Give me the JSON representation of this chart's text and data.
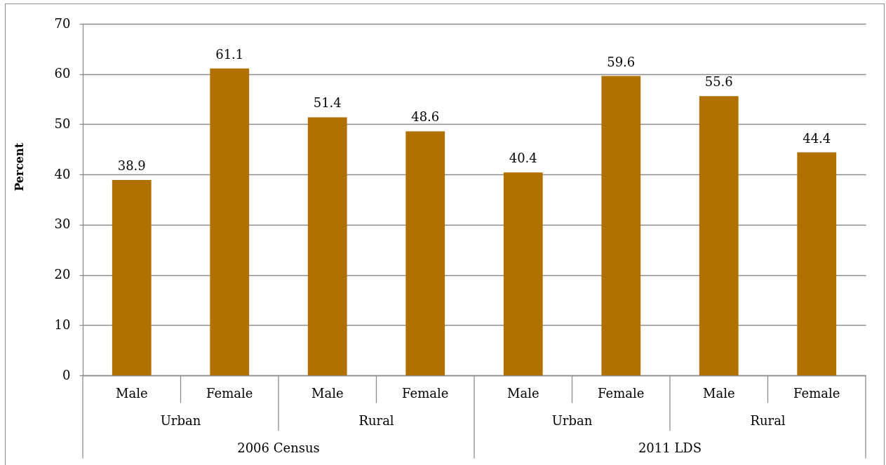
{
  "chart_data": {
    "type": "bar",
    "categories": [
      "Male",
      "Female",
      "Male",
      "Female",
      "Male",
      "Female",
      "Male",
      "Female"
    ],
    "values": [
      38.9,
      61.1,
      51.4,
      48.6,
      40.4,
      59.6,
      55.6,
      44.4
    ],
    "color": "#b07100",
    "ylabel": "Percent",
    "ylim": [
      0,
      70
    ],
    "yticks": [
      0,
      10,
      20,
      30,
      40,
      50,
      60,
      70
    ],
    "grid": "y",
    "data_labels": true,
    "annotations": [
      "Urban",
      "Rural",
      "Urban",
      "Rural",
      "2006 Census",
      "2011 LDS"
    ]
  }
}
